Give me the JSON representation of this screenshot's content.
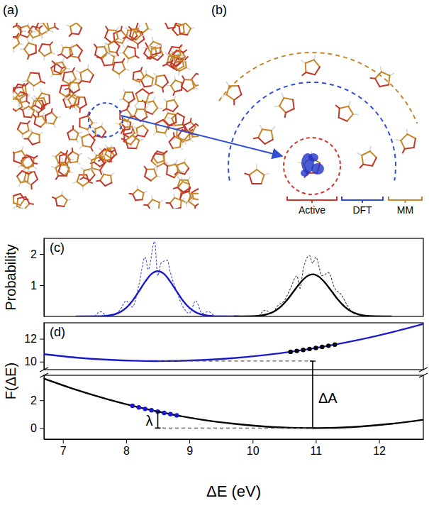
{
  "figure": {
    "panel_a": "(a)",
    "panel_b": "(b)",
    "regions": [
      "Active",
      "DFT",
      "MM"
    ]
  },
  "chart_data": [
    {
      "type": "line",
      "panel_label": "(c)",
      "y_label": "Probability",
      "xlim": [
        6.7,
        12.7
      ],
      "ylim": [
        0,
        2.5
      ],
      "yticks": [
        1,
        2
      ],
      "tick_labels": "y",
      "series": [
        {
          "type": "line",
          "color": "#4a4ad0",
          "line_style": "dashed",
          "x": [
            7.5,
            7.6,
            7.7,
            7.9,
            8.0,
            8.1,
            8.2,
            8.3,
            8.35,
            8.45,
            8.5,
            8.55,
            8.65,
            8.7,
            8.8,
            8.9,
            9.0,
            9.1,
            9.2,
            9.3,
            9.4
          ],
          "values": [
            0,
            0.15,
            0,
            0.2,
            0.5,
            0.3,
            1.0,
            1.9,
            1.5,
            2.4,
            1.3,
            1.7,
            1.8,
            1.4,
            0.8,
            0.3,
            0.1,
            0.5,
            0.1,
            0.15,
            0
          ]
        },
        {
          "type": "line",
          "color": "#444444",
          "line_style": "dashed",
          "x": [
            10.1,
            10.2,
            10.3,
            10.4,
            10.5,
            10.6,
            10.7,
            10.75,
            10.8,
            10.9,
            10.95,
            11.0,
            11.1,
            11.2,
            11.3,
            11.4,
            11.5,
            11.6,
            11.8
          ],
          "values": [
            0,
            0.2,
            0.1,
            0.35,
            0.5,
            0.9,
            1.3,
            0.9,
            1.5,
            1.95,
            1.7,
            1.9,
            1.3,
            1.4,
            0.9,
            0.7,
            0.35,
            0.1,
            0
          ]
        },
        {
          "type": "line",
          "color": "#1a1acc",
          "line_style": "solid",
          "x": [
            7.2,
            7.6,
            7.8,
            7.9,
            8.0,
            8.1,
            8.2,
            8.3,
            8.4,
            8.5,
            8.6,
            8.7,
            8.8,
            8.9,
            9.0,
            9.1,
            9.2,
            9.4,
            9.8
          ],
          "values": [
            0,
            0.007,
            0.057,
            0.134,
            0.276,
            0.5,
            0.8,
            1.11,
            1.36,
            1.45,
            1.36,
            1.11,
            0.8,
            0.5,
            0.276,
            0.134,
            0.057,
            0.007,
            0
          ]
        },
        {
          "type": "line",
          "color": "#000000",
          "line_style": "solid",
          "x": [
            9.7,
            10.05,
            10.25,
            10.35,
            10.45,
            10.55,
            10.65,
            10.75,
            10.85,
            10.95,
            11.05,
            11.15,
            11.25,
            11.35,
            11.45,
            11.55,
            11.65,
            11.85,
            12.2
          ],
          "values": [
            0,
            0.013,
            0.08,
            0.17,
            0.32,
            0.538,
            0.805,
            1.07,
            1.27,
            1.35,
            1.27,
            1.07,
            0.805,
            0.538,
            0.32,
            0.17,
            0.08,
            0.013,
            0
          ]
        }
      ]
    },
    {
      "type": "line",
      "panel_label": "(d)",
      "xlim": [
        6.7,
        12.7
      ],
      "ylim": [
        9.3,
        13.4
      ],
      "yticks": [
        10,
        12
      ],
      "tick_labels": "y",
      "series": [
        {
          "type": "line",
          "color": "#1a1acc",
          "line_style": "solid",
          "x": [
            6.7,
            7.2,
            7.7,
            8.2,
            8.5,
            8.7,
            9.2,
            9.7,
            10.2,
            10.7,
            11.2,
            11.7,
            12.2,
            12.7
          ],
          "values": [
            10.65,
            10.36,
            10.17,
            10.07,
            10.05,
            10.06,
            10.14,
            10.31,
            10.58,
            10.94,
            11.39,
            11.93,
            12.57,
            13.3
          ]
        },
        {
          "type": "scatter",
          "color": "#000000",
          "marker": "circle",
          "x": [
            10.6,
            10.7,
            10.8,
            10.9,
            11.0,
            11.1,
            11.2,
            11.3
          ],
          "values": [
            10.86,
            10.94,
            11.02,
            11.11,
            11.2,
            11.29,
            11.39,
            11.49
          ]
        }
      ]
    },
    {
      "type": "line",
      "y_label": "F(ΔE)",
      "x_label": "ΔE (eV)",
      "xlim": [
        6.7,
        12.7
      ],
      "ylim": [
        -0.8,
        3.8
      ],
      "xticks": [
        7,
        8,
        9,
        10,
        11,
        12
      ],
      "yticks": [
        0,
        2
      ],
      "series": [
        {
          "type": "line",
          "color": "#000000",
          "line_style": "solid",
          "x": [
            6.7,
            7.2,
            7.7,
            8.2,
            8.7,
            9.2,
            9.7,
            10.2,
            10.7,
            10.95,
            11.2,
            11.7,
            12.2,
            12.7
          ],
          "values": [
            3.56,
            2.77,
            2.08,
            1.49,
            1.0,
            0.6,
            0.31,
            0.11,
            0.01,
            0,
            0.01,
            0.11,
            0.31,
            0.6
          ]
        },
        {
          "type": "scatter",
          "color": "#1a1acc",
          "marker": "circle",
          "x": [
            8.1,
            8.2,
            8.3,
            8.4,
            8.5,
            8.6,
            8.7,
            8.8
          ],
          "values": [
            1.6,
            1.49,
            1.38,
            1.28,
            1.18,
            1.09,
            1.0,
            0.91
          ]
        }
      ],
      "annotations": [
        {
          "text": "ΔA",
          "x": 10.95,
          "y0": 0,
          "y1": 10.05,
          "guide_x": 8.5,
          "guide_y": 10.05
        },
        {
          "text": "λ",
          "x": 8.5,
          "y0": 0,
          "y1": 1.18,
          "guide_x": 10.95,
          "guide_y": 0
        }
      ]
    }
  ]
}
